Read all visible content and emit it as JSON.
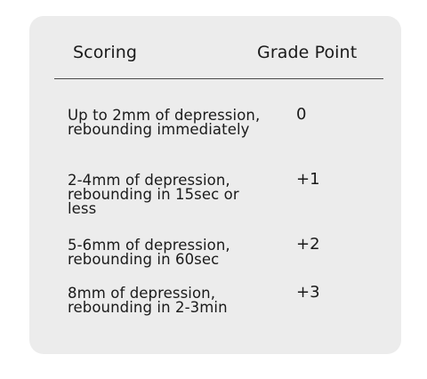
{
  "table": {
    "header": {
      "scoring": "Scoring",
      "grade_point": "Grade Point"
    },
    "rows": [
      {
        "description": "Up to 2mm of depression, rebounding immediately",
        "grade": "0"
      },
      {
        "description": "2-4mm of depression, rebounding in 15sec or less",
        "grade": "+1"
      },
      {
        "description": "5-6mm of depression, rebounding in 60sec",
        "grade": "+2"
      },
      {
        "description": "8mm of depression, rebounding in 2-3min",
        "grade": "+3"
      }
    ]
  }
}
